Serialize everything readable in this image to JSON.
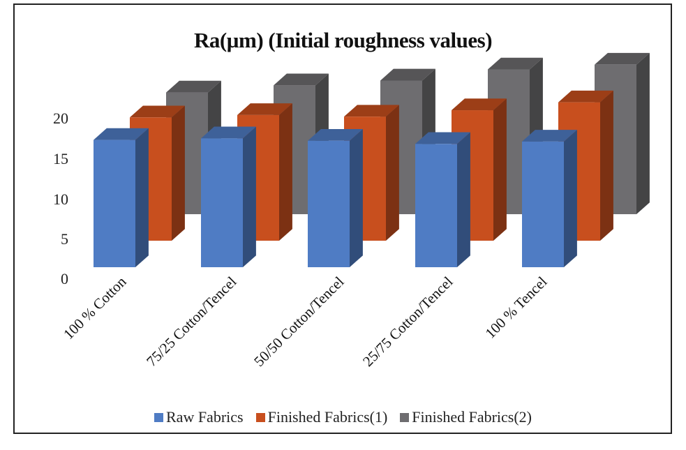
{
  "chart_data": {
    "type": "bar",
    "subtype": "3d-clustered-column",
    "title": "Ra(µm) (Initial roughness values)",
    "xlabel": "",
    "ylabel": "",
    "ylim": [
      0,
      20
    ],
    "yticks": [
      "0",
      "5",
      "10",
      "15",
      "20"
    ],
    "grid": false,
    "legend_position": "bottom",
    "categories": [
      "100 % Cotton",
      "75/25 Cotton/Tencel",
      "50/50 Cotton/Tencel",
      "25/75 Cotton/Tencel",
      "100 % Tencel"
    ],
    "series": [
      {
        "name": "Raw Fabrics",
        "color": "#4f7cc4",
        "values": [
          16.0,
          16.2,
          15.9,
          15.5,
          15.8
        ]
      },
      {
        "name": "Finished Fabrics(1)",
        "color": "#c84f1e",
        "values": [
          15.5,
          15.8,
          15.6,
          16.4,
          17.4
        ]
      },
      {
        "name": "Finished Fabrics(2)",
        "color": "#6e6d70",
        "values": [
          15.3,
          16.2,
          16.8,
          18.2,
          18.8
        ]
      }
    ]
  },
  "legend": {
    "items": [
      {
        "label": "Raw Fabrics",
        "color": "#4f7cc4"
      },
      {
        "label": "Finished Fabrics(1)",
        "color": "#c84f1e"
      },
      {
        "label": "Finished Fabrics(2)",
        "color": "#6e6d70"
      }
    ]
  }
}
